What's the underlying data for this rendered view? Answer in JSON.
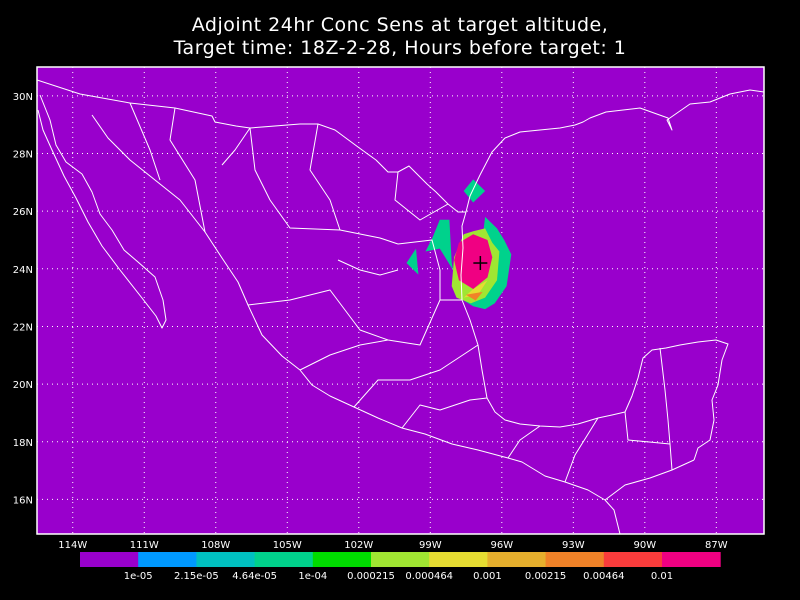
{
  "title": {
    "line1": "Adjoint 24hr Conc Sens at target altitude,",
    "line2": "Target time: 18Z-2-28, Hours before target: 1"
  },
  "map": {
    "background_color": "#9900cc",
    "boundary_color": "#ffffff",
    "gridline_style": "dotted",
    "lon_range": [
      -115.5,
      -85.0
    ],
    "lat_range": [
      14.8,
      31.0
    ],
    "lon_labels": [
      {
        "lon": -114,
        "text": "114W"
      },
      {
        "lon": -111,
        "text": "111W"
      },
      {
        "lon": -108,
        "text": "108W"
      },
      {
        "lon": -105,
        "text": "105W"
      },
      {
        "lon": -102,
        "text": "102W"
      },
      {
        "lon": -99,
        "text": "99W"
      },
      {
        "lon": -96,
        "text": "96W"
      },
      {
        "lon": -93,
        "text": "93W"
      },
      {
        "lon": -90,
        "text": "90W"
      },
      {
        "lon": -87,
        "text": "87W"
      }
    ],
    "lat_labels": [
      {
        "lat": 30,
        "text": "30N"
      },
      {
        "lat": 28,
        "text": "28N"
      },
      {
        "lat": 26,
        "text": "26N"
      },
      {
        "lat": 24,
        "text": "24N"
      },
      {
        "lat": 22,
        "text": "22N"
      },
      {
        "lat": 20,
        "text": "20N"
      },
      {
        "lat": 18,
        "text": "18N"
      },
      {
        "lat": 16,
        "text": "16N"
      }
    ],
    "target_marker": {
      "lon": -96.9,
      "lat": 24.2,
      "symbol": "+"
    }
  },
  "contours": [
    {
      "level": 3,
      "lonlat": [
        [
          -97.2,
          27.1
        ],
        [
          -96.7,
          26.7
        ],
        [
          -97.2,
          26.3
        ],
        [
          -97.6,
          26.7
        ]
      ]
    },
    {
      "level": 3,
      "lonlat": [
        [
          -98.6,
          25.7
        ],
        [
          -98.2,
          25.7
        ],
        [
          -98.1,
          24.2
        ],
        [
          -97.8,
          23.0
        ],
        [
          -97.2,
          22.7
        ],
        [
          -96.7,
          22.6
        ],
        [
          -96.3,
          22.8
        ],
        [
          -95.8,
          23.4
        ],
        [
          -95.6,
          24.5
        ],
        [
          -95.9,
          25.0
        ],
        [
          -96.2,
          25.4
        ],
        [
          -96.7,
          25.8
        ],
        [
          -96.8,
          25.1
        ],
        [
          -97.3,
          24.8
        ],
        [
          -97.8,
          24.6
        ],
        [
          -98.0,
          23.9
        ],
        [
          -98.6,
          24.7
        ],
        [
          -99.2,
          24.6
        ],
        [
          -98.9,
          25.1
        ]
      ]
    },
    {
      "level": 3,
      "lonlat": [
        [
          -100.0,
          24.2
        ],
        [
          -99.5,
          23.8
        ],
        [
          -99.6,
          24.7
        ]
      ]
    },
    {
      "level": 5,
      "lonlat": [
        [
          -96.7,
          25.4
        ],
        [
          -96.4,
          24.9
        ],
        [
          -96.1,
          24.6
        ],
        [
          -96.2,
          23.6
        ],
        [
          -96.7,
          23.0
        ],
        [
          -97.3,
          22.8
        ],
        [
          -97.9,
          23.0
        ],
        [
          -98.1,
          23.4
        ],
        [
          -98.0,
          24.4
        ],
        [
          -97.6,
          25.2
        ],
        [
          -97.2,
          25.3
        ]
      ]
    },
    {
      "level": 6,
      "lonlat": [
        [
          -96.6,
          23.6
        ],
        [
          -97.0,
          23.1
        ],
        [
          -97.6,
          23.0
        ],
        [
          -97.2,
          23.3
        ]
      ]
    },
    {
      "level": 8,
      "lonlat": [
        [
          -96.8,
          23.2
        ],
        [
          -97.1,
          22.9
        ],
        [
          -97.5,
          23.1
        ]
      ]
    },
    {
      "level": 11,
      "lonlat": [
        [
          -97.2,
          25.2
        ],
        [
          -96.6,
          25.0
        ],
        [
          -96.4,
          24.4
        ],
        [
          -96.6,
          23.7
        ],
        [
          -97.2,
          23.3
        ],
        [
          -97.8,
          23.6
        ],
        [
          -98.0,
          24.3
        ],
        [
          -97.8,
          24.9
        ]
      ]
    }
  ],
  "colorbar": {
    "colors": [
      "#9900cc",
      "#0099ff",
      "#00c0c0",
      "#00d28c",
      "#00dc00",
      "#a0e632",
      "#e6dc32",
      "#e6af2d",
      "#f08228",
      "#fa3c3c",
      "#f00082"
    ],
    "labels": [
      "1e-05",
      "2.15e-05",
      "4.64e-05",
      "1e-04",
      "0.000215",
      "0.000464",
      "0.001",
      "0.00215",
      "0.00464",
      "0.01"
    ]
  }
}
